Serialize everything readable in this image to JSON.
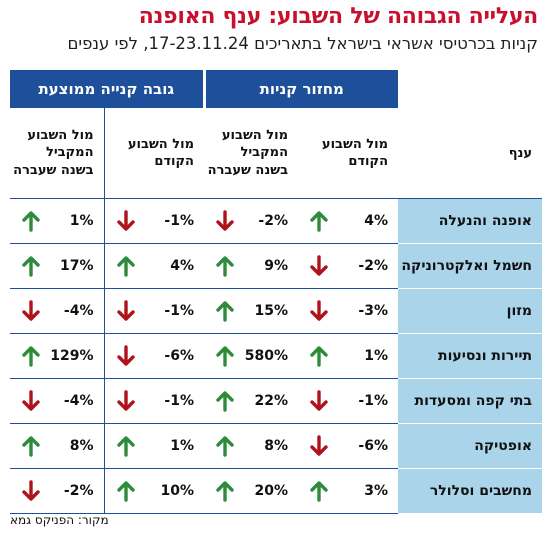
{
  "header": {
    "title": "העלייה הגבוהה של השבוע: ענף האופנה",
    "subtitle": "קניות בכרטיסי אשראי בישראל בתאריכים 17-23.11.24, לפי ענפים"
  },
  "source": "מקור: הפניקס גמא",
  "colors": {
    "up": "#2e8b3a",
    "down": "#b0121b",
    "header_blue": "#1e4f9a",
    "row_label_bg": "#a9d4ea",
    "title_red": "#c8102e"
  },
  "chart_data": {
    "type": "table",
    "groups": [
      {
        "label": "מחזור קניות",
        "columns": [
          "col_week",
          "col_year"
        ]
      },
      {
        "label": "גובה קנייה ממוצעת",
        "columns": [
          "col_week",
          "col_year"
        ]
      }
    ],
    "row_header": "ענף",
    "column_labels": {
      "col_week": "מול השבוע הקודם",
      "col_year": "מול השבוע המקביל בשנה שעברה"
    },
    "rows": [
      {
        "sector": "אופנה והנעלה",
        "turnover_vs_prev_week": "4%",
        "turnover_vs_last_year": "-2%",
        "avg_vs_prev_week": "-1%",
        "avg_vs_last_year": "1%"
      },
      {
        "sector": "חשמל ואלקטרוניקה",
        "turnover_vs_prev_week": "-2%",
        "turnover_vs_last_year": "9%",
        "avg_vs_prev_week": "4%",
        "avg_vs_last_year": "17%"
      },
      {
        "sector": "מזון",
        "turnover_vs_prev_week": "-3%",
        "turnover_vs_last_year": "15%",
        "avg_vs_prev_week": "-1%",
        "avg_vs_last_year": "-4%"
      },
      {
        "sector": "תיירות ונסיעות",
        "turnover_vs_prev_week": "1%",
        "turnover_vs_last_year": "580%",
        "avg_vs_prev_week": "-6%",
        "avg_vs_last_year": "129%"
      },
      {
        "sector": "בתי קפה ומסעדות",
        "turnover_vs_prev_week": "-1%",
        "turnover_vs_last_year": "22%",
        "avg_vs_prev_week": "-1%",
        "avg_vs_last_year": "-4%"
      },
      {
        "sector": "אופטיקה",
        "turnover_vs_prev_week": "-6%",
        "turnover_vs_last_year": "8%",
        "avg_vs_prev_week": "1%",
        "avg_vs_last_year": "8%"
      },
      {
        "sector": "מחשבים וסלולר",
        "turnover_vs_prev_week": "3%",
        "turnover_vs_last_year": "20%",
        "avg_vs_prev_week": "10%",
        "avg_vs_last_year": "-2%"
      }
    ]
  }
}
